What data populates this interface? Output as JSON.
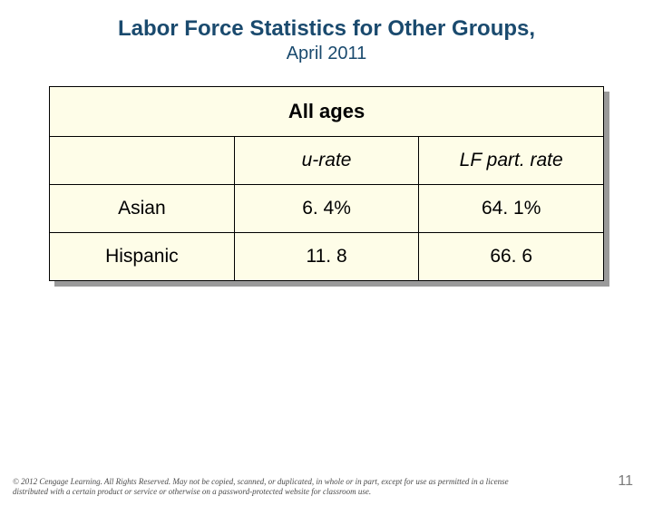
{
  "title": "Labor Force Statistics for Other Groups,",
  "subtitle": "April 2011",
  "table": {
    "background_color": "#fefde8",
    "border_color": "#000000",
    "shadow_color": "#9a9a9a",
    "merged_header": "All ages",
    "columns": [
      "",
      "u-rate",
      "LF part. rate"
    ],
    "rows": [
      {
        "label": "Asian",
        "u_rate": "6. 4%",
        "lf_rate": "64. 1%"
      },
      {
        "label": "Hispanic",
        "u_rate": "11. 8",
        "lf_rate": "66. 6"
      }
    ]
  },
  "footer_text": "© 2012 Cengage Learning. All Rights Reserved. May not be copied, scanned, or duplicated, in whole or in part, except for use as permitted in a license distributed with a certain product or service or otherwise on a password-protected website for classroom use.",
  "page_number": "11",
  "colors": {
    "title_color": "#1a4a6e",
    "page_background": "#ffffff"
  }
}
